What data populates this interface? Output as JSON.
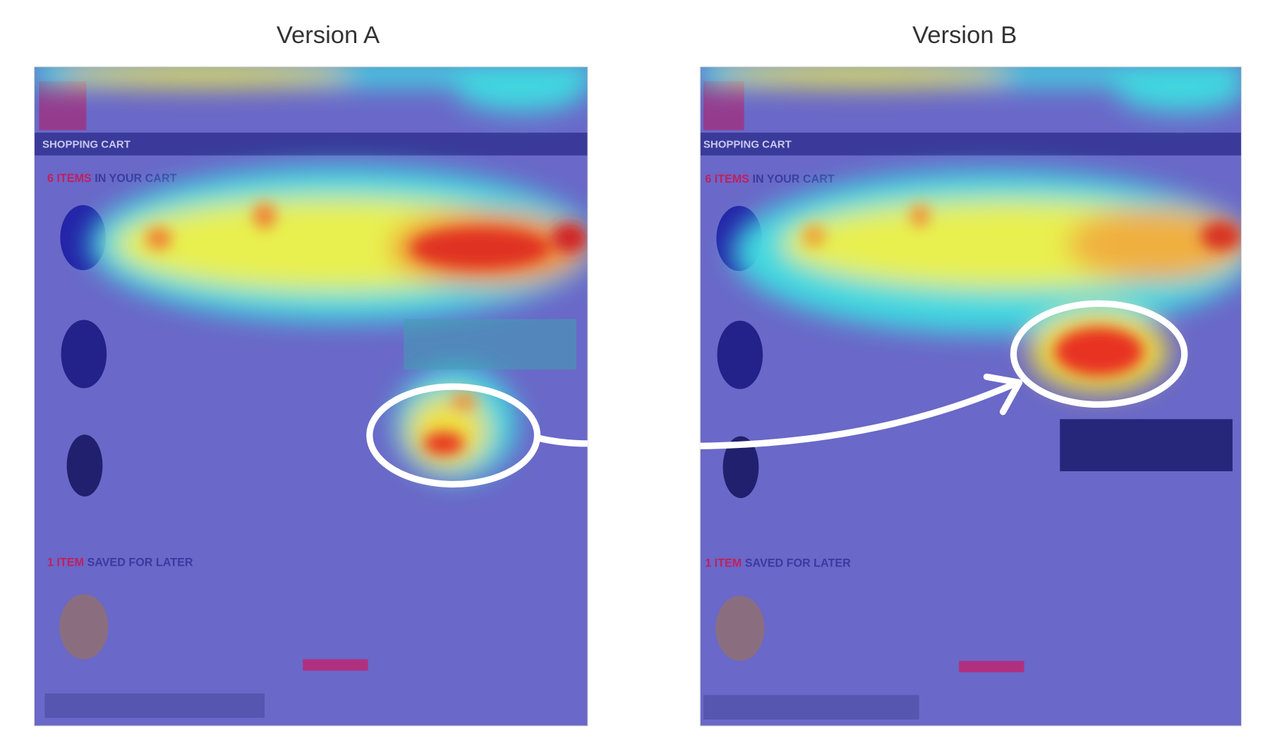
{
  "panels": [
    {
      "title": "Version A",
      "header": "SHOPPING CART",
      "items_heading": {
        "count": "6 ITEMS",
        "rest": "IN YOUR CART"
      },
      "saved_heading": {
        "count": "1 ITEM",
        "rest": "SAVED FOR LATER"
      }
    },
    {
      "title": "Version B",
      "header": "SHOPPING CART",
      "items_heading": {
        "count": "6 ITEMS",
        "rest": "IN YOUR CART"
      },
      "saved_heading": {
        "count": "1 ITEM",
        "rest": "SAVED FOR LATER"
      }
    }
  ]
}
